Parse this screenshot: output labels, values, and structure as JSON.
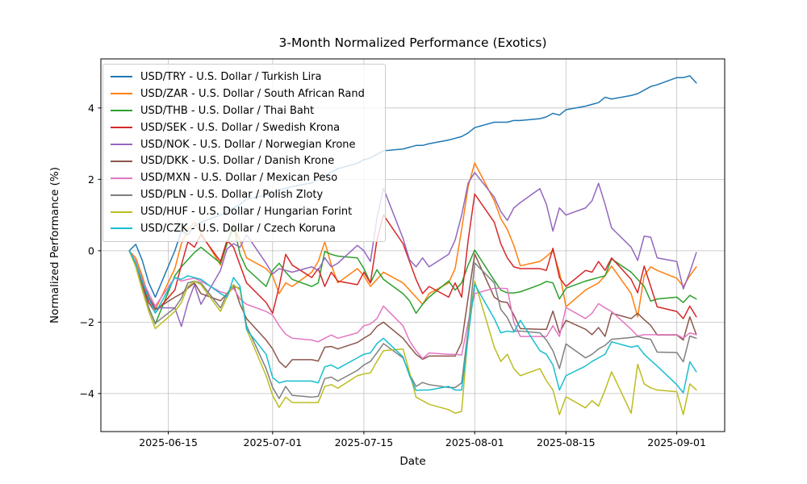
{
  "chart_data": {
    "type": "line",
    "title": "3-Month Normalized Performance (Exotics)",
    "xlabel": "Date",
    "ylabel": "Normalized Performance (%)",
    "grid": true,
    "legend_position": "upper left",
    "background": "#ffffff",
    "grid_color": "#b0b0b0",
    "axis_color": "#000000",
    "x_tick_labels": [
      "2025-06-15",
      "2025-07-01",
      "2025-07-15",
      "2025-08-01",
      "2025-08-15",
      "2025-09-01"
    ],
    "y_ticks": [
      -4,
      -2,
      0,
      2,
      4
    ],
    "y_tick_labels": [
      "−4",
      "−2",
      "0",
      "2",
      "4"
    ],
    "ylim_approx": [
      -5.06,
      5.37
    ],
    "x": [
      "2025-06-09",
      "2025-06-10",
      "2025-06-11",
      "2025-06-12",
      "2025-06-13",
      "2025-06-16",
      "2025-06-17",
      "2025-06-18",
      "2025-06-19",
      "2025-06-20",
      "2025-06-23",
      "2025-06-24",
      "2025-06-25",
      "2025-06-26",
      "2025-06-27",
      "2025-06-30",
      "2025-07-01",
      "2025-07-02",
      "2025-07-03",
      "2025-07-04",
      "2025-07-07",
      "2025-07-08",
      "2025-07-09",
      "2025-07-10",
      "2025-07-11",
      "2025-07-14",
      "2025-07-15",
      "2025-07-16",
      "2025-07-17",
      "2025-07-18",
      "2025-07-21",
      "2025-07-22",
      "2025-07-23",
      "2025-07-24",
      "2025-07-25",
      "2025-07-28",
      "2025-07-29",
      "2025-07-30",
      "2025-07-31",
      "2025-08-01",
      "2025-08-04",
      "2025-08-05",
      "2025-08-06",
      "2025-08-07",
      "2025-08-08",
      "2025-08-11",
      "2025-08-12",
      "2025-08-13",
      "2025-08-14",
      "2025-08-15",
      "2025-08-18",
      "2025-08-19",
      "2025-08-20",
      "2025-08-21",
      "2025-08-22",
      "2025-08-25",
      "2025-08-26",
      "2025-08-27",
      "2025-08-28",
      "2025-08-29",
      "2025-09-01",
      "2025-09-02",
      "2025-09-03",
      "2025-09-04"
    ],
    "series": [
      {
        "name": "USD/TRY",
        "label": "USD/TRY - U.S. Dollar / Turkish Lira",
        "color": "#1f77b4",
        "values": [
          0.0,
          0.18,
          -0.27,
          -0.9,
          -1.3,
          0.0,
          0.55,
          0.45,
          0.7,
          0.8,
          1.0,
          1.1,
          1.2,
          1.3,
          1.45,
          1.55,
          1.6,
          1.7,
          1.75,
          1.8,
          1.9,
          2.0,
          2.1,
          2.2,
          2.3,
          2.45,
          2.55,
          2.6,
          2.7,
          2.8,
          2.85,
          2.9,
          2.95,
          2.95,
          3.0,
          3.1,
          3.15,
          3.2,
          3.3,
          3.45,
          3.6,
          3.6,
          3.6,
          3.65,
          3.65,
          3.7,
          3.75,
          3.85,
          3.8,
          3.95,
          4.05,
          4.1,
          4.15,
          4.3,
          4.25,
          4.35,
          4.4,
          4.5,
          4.6,
          4.65,
          4.85,
          4.85,
          4.9,
          4.7
        ]
      },
      {
        "name": "USD/ZAR",
        "label": "USD/ZAR - U.S. Dollar / South African Rand",
        "color": "#ff7f0e",
        "values": [
          0.0,
          -0.2,
          -0.7,
          -1.3,
          -1.65,
          -0.5,
          0.2,
          0.59,
          0.8,
          0.5,
          -0.4,
          0.2,
          0.65,
          0.3,
          -0.2,
          -0.5,
          -0.7,
          -1.2,
          -0.9,
          -1.0,
          -0.6,
          -0.3,
          0.25,
          -0.4,
          -0.9,
          -0.5,
          -0.7,
          -1.0,
          -0.8,
          -0.6,
          -0.9,
          -1.1,
          -1.3,
          -1.5,
          -1.2,
          -0.9,
          -0.5,
          0.6,
          1.8,
          2.46,
          1.4,
          0.9,
          0.6,
          0.15,
          -0.42,
          -0.3,
          -0.16,
          0.0,
          -0.6,
          -1.57,
          -1.1,
          -1.0,
          -0.9,
          -0.7,
          -0.43,
          -1.2,
          -1.85,
          -0.7,
          -0.45,
          -0.55,
          -0.77,
          -1.0,
          -0.7,
          -0.45
        ]
      },
      {
        "name": "USD/THB",
        "label": "USD/THB - U.S. Dollar / Thai Baht",
        "color": "#2ca02c",
        "values": [
          0.0,
          -0.3,
          -0.9,
          -1.6,
          -2.05,
          -0.7,
          -0.45,
          -0.25,
          -0.05,
          0.1,
          -0.35,
          0.2,
          0.74,
          -0.1,
          -0.5,
          -1.0,
          -0.55,
          -0.35,
          -0.6,
          -0.8,
          -1.0,
          -0.9,
          -0.02,
          -0.1,
          -0.15,
          -0.2,
          -0.5,
          -0.9,
          -0.53,
          -0.8,
          -1.2,
          -1.4,
          -1.75,
          -1.5,
          -1.3,
          -0.85,
          -1.1,
          -0.9,
          -0.4,
          0.02,
          -0.83,
          -1.1,
          -1.18,
          -1.18,
          -1.15,
          -0.95,
          -0.86,
          -0.9,
          -1.35,
          -1.05,
          -0.85,
          -0.8,
          -0.75,
          -0.7,
          -0.23,
          -0.6,
          -0.8,
          -1.0,
          -1.41,
          -1.35,
          -1.3,
          -1.45,
          -1.25,
          -1.35
        ]
      },
      {
        "name": "USD/SEK",
        "label": "USD/SEK - U.S. Dollar / Swedish Krona",
        "color": "#d62728",
        "values": [
          0.0,
          -0.35,
          -0.9,
          -1.45,
          -1.73,
          -1.1,
          -0.4,
          0.25,
          0.1,
          0.45,
          -0.3,
          0.29,
          0.1,
          -0.4,
          -0.9,
          -1.45,
          -1.75,
          -1.0,
          -0.1,
          -0.4,
          -0.75,
          -0.5,
          -1.0,
          -0.6,
          -0.85,
          -0.95,
          -0.6,
          -0.9,
          0.3,
          1.0,
          0.2,
          -0.3,
          -0.8,
          -1.2,
          -1.0,
          -1.3,
          -0.9,
          -1.3,
          0.3,
          1.59,
          0.8,
          0.2,
          -0.2,
          -0.45,
          -0.5,
          -0.5,
          -0.55,
          0.07,
          -0.75,
          -1.0,
          -0.55,
          -0.6,
          -0.3,
          -0.55,
          -0.2,
          -0.8,
          -1.18,
          -0.43,
          -1.0,
          -1.57,
          -1.7,
          -1.9,
          -1.55,
          -1.85
        ]
      },
      {
        "name": "USD/NOK",
        "label": "USD/NOK - U.S. Dollar / Norwegian Krone",
        "color": "#9467bd",
        "values": [
          0.0,
          -0.3,
          -0.8,
          -1.3,
          -1.6,
          -1.6,
          -2.12,
          -1.45,
          -0.95,
          -1.5,
          -0.55,
          0.05,
          0.2,
          0.1,
          0.45,
          -0.35,
          -0.65,
          -0.5,
          -0.55,
          -0.6,
          -0.45,
          -0.55,
          -0.2,
          -0.45,
          -0.35,
          0.15,
          0.0,
          -0.3,
          0.9,
          1.75,
          0.35,
          -0.25,
          -0.45,
          -0.2,
          -0.45,
          -0.1,
          0.3,
          1.0,
          1.9,
          2.19,
          1.5,
          1.1,
          0.85,
          1.2,
          1.35,
          1.74,
          1.3,
          0.55,
          1.2,
          1.0,
          1.2,
          1.4,
          1.89,
          1.3,
          0.64,
          0.1,
          -0.27,
          0.41,
          0.38,
          -0.2,
          -0.3,
          -1.07,
          -0.6,
          -0.05
        ]
      },
      {
        "name": "USD/DKK",
        "label": "USD/DKK - U.S. Dollar / Danish Krone",
        "color": "#8c564b",
        "values": [
          0.0,
          -0.35,
          -0.8,
          -1.3,
          -1.65,
          -1.3,
          -1.2,
          -1.05,
          -0.9,
          -1.2,
          -1.4,
          -1.2,
          -0.95,
          -1.5,
          -1.9,
          -2.5,
          -2.75,
          -3.1,
          -3.27,
          -3.05,
          -3.05,
          -3.09,
          -2.7,
          -2.68,
          -2.75,
          -2.57,
          -2.45,
          -2.34,
          -2.12,
          -2.0,
          -2.45,
          -2.68,
          -2.9,
          -3.04,
          -2.95,
          -2.95,
          -2.95,
          -2.57,
          -1.3,
          -0.09,
          -1.3,
          -1.42,
          -1.45,
          -1.8,
          -2.18,
          -2.2,
          -2.2,
          -1.69,
          -2.3,
          -1.95,
          -2.2,
          -2.35,
          -2.15,
          -2.4,
          -1.75,
          -1.9,
          -1.75,
          -1.93,
          -2.09,
          -2.36,
          -2.36,
          -2.5,
          -1.85,
          -2.35
        ]
      },
      {
        "name": "USD/MXN",
        "label": "USD/MXN - U.S. Dollar / Mexican Peso",
        "color": "#e377c2",
        "values": [
          0.0,
          -0.3,
          -0.8,
          -1.2,
          -1.55,
          -0.75,
          -0.85,
          -0.8,
          -0.77,
          -0.85,
          -1.15,
          -1.2,
          -1.05,
          -1.35,
          -1.5,
          -1.7,
          -1.8,
          -2.1,
          -2.34,
          -2.45,
          -2.5,
          -2.55,
          -2.45,
          -2.36,
          -2.45,
          -2.3,
          -2.1,
          -2.05,
          -1.9,
          -1.55,
          -2.1,
          -2.52,
          -2.8,
          -3.02,
          -2.86,
          -2.9,
          -2.9,
          -2.92,
          -2.0,
          -1.2,
          -1.05,
          -1.05,
          -1.06,
          -2.0,
          -2.4,
          -2.4,
          -2.4,
          -2.1,
          -2.4,
          -1.59,
          -1.9,
          -1.75,
          -1.48,
          -1.6,
          -1.7,
          -2.2,
          -2.39,
          -2.35,
          -2.35,
          -2.35,
          -2.35,
          -2.45,
          -2.3,
          -2.35
        ]
      },
      {
        "name": "USD/PLN",
        "label": "USD/PLN - U.S. Dollar / Polish Zloty",
        "color": "#7f7f7f",
        "values": [
          0.0,
          -0.4,
          -1.0,
          -1.6,
          -2.03,
          -1.6,
          -1.33,
          -0.9,
          -0.85,
          -0.9,
          -1.6,
          -1.2,
          -1.0,
          -1.05,
          -2.1,
          -3.3,
          -3.83,
          -4.14,
          -3.8,
          -4.05,
          -4.1,
          -4.08,
          -3.58,
          -3.54,
          -3.65,
          -3.35,
          -3.2,
          -3.1,
          -2.86,
          -2.6,
          -3.0,
          -3.45,
          -3.8,
          -3.69,
          -3.75,
          -3.83,
          -3.83,
          -3.7,
          -2.2,
          -0.34,
          -0.9,
          -1.64,
          -1.87,
          -2.25,
          -2.25,
          -2.3,
          -2.5,
          -2.8,
          -3.3,
          -2.61,
          -3.0,
          -2.9,
          -2.75,
          -2.65,
          -2.48,
          -2.43,
          -2.4,
          -2.45,
          -2.48,
          -2.84,
          -2.85,
          -3.11,
          -2.39,
          -2.45
        ]
      },
      {
        "name": "USD/HUF",
        "label": "USD/HUF - U.S. Dollar / Hungarian Forint",
        "color": "#bcbd22",
        "values": [
          0.0,
          -0.45,
          -1.1,
          -1.7,
          -2.18,
          -1.7,
          -1.45,
          -1.0,
          -0.85,
          -0.95,
          -1.7,
          -1.3,
          -0.95,
          -1.1,
          -2.2,
          -3.5,
          -4.05,
          -4.39,
          -4.1,
          -4.25,
          -4.25,
          -4.25,
          -3.8,
          -3.75,
          -3.85,
          -3.5,
          -3.45,
          -3.42,
          -3.1,
          -2.8,
          -2.75,
          -3.4,
          -4.1,
          -4.2,
          -4.3,
          -4.45,
          -4.55,
          -4.5,
          -2.3,
          -0.85,
          -2.7,
          -3.1,
          -2.9,
          -3.3,
          -3.5,
          -3.3,
          -3.64,
          -3.9,
          -4.59,
          -4.09,
          -4.4,
          -4.2,
          -4.35,
          -3.9,
          -3.39,
          -4.55,
          -3.18,
          -3.73,
          -3.84,
          -3.9,
          -3.95,
          -4.59,
          -3.73,
          -3.9
        ]
      },
      {
        "name": "USD/CZK",
        "label": "USD/CZK - U.S. Dollar / Czech Koruna",
        "color": "#17becf",
        "values": [
          0.0,
          -0.35,
          -0.85,
          -1.35,
          -1.75,
          -0.75,
          -0.8,
          -0.7,
          -0.75,
          -0.8,
          -1.2,
          -1.3,
          -0.75,
          -1.0,
          -2.2,
          -2.9,
          -3.55,
          -3.7,
          -3.65,
          -3.65,
          -3.65,
          -3.7,
          -3.25,
          -3.2,
          -3.3,
          -3.0,
          -2.9,
          -2.86,
          -2.6,
          -2.45,
          -2.97,
          -3.5,
          -3.91,
          -3.9,
          -3.9,
          -3.8,
          -3.9,
          -3.9,
          -2.4,
          -0.94,
          -1.9,
          -2.3,
          -2.25,
          -2.28,
          -1.95,
          -2.8,
          -2.9,
          -3.2,
          -3.9,
          -3.5,
          -3.23,
          -3.1,
          -3.0,
          -2.9,
          -2.55,
          -2.7,
          -2.66,
          -2.9,
          -3.07,
          -3.23,
          -3.75,
          -3.98,
          -3.11,
          -3.39
        ]
      }
    ]
  }
}
